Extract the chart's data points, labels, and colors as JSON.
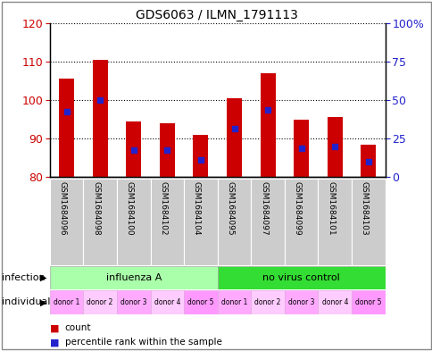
{
  "title": "GDS6063 / ILMN_1791113",
  "samples": [
    "GSM1684096",
    "GSM1684098",
    "GSM1684100",
    "GSM1684102",
    "GSM1684104",
    "GSM1684095",
    "GSM1684097",
    "GSM1684099",
    "GSM1684101",
    "GSM1684103"
  ],
  "counts": [
    105.5,
    110.5,
    94.5,
    94.0,
    91.0,
    100.5,
    107.0,
    95.0,
    95.5,
    88.5
  ],
  "percentile_left_axis": [
    97.0,
    100.0,
    87.0,
    87.0,
    84.5,
    92.5,
    97.5,
    87.5,
    88.0,
    84.0
  ],
  "ylim_left": [
    80,
    120
  ],
  "ylim_right": [
    0,
    100
  ],
  "yticks_left": [
    80,
    90,
    100,
    110,
    120
  ],
  "yticks_right": [
    0,
    25,
    50,
    75,
    100
  ],
  "ytick_labels_right": [
    "0",
    "25",
    "50",
    "75",
    "100%"
  ],
  "bar_color": "#cc0000",
  "percentile_color": "#2222cc",
  "bar_bottom": 80,
  "infection_groups": [
    {
      "label": "influenza A",
      "start": 0,
      "end": 5,
      "color": "#aaffaa"
    },
    {
      "label": "no virus control",
      "start": 5,
      "end": 10,
      "color": "#33dd33"
    }
  ],
  "individuals": [
    "donor 1",
    "donor 2",
    "donor 3",
    "donor 4",
    "donor 5",
    "donor 1",
    "donor 2",
    "donor 3",
    "donor 4",
    "donor 5"
  ],
  "ind_colors": [
    "#ffaaff",
    "#ffccff",
    "#ffaaff",
    "#ffccff",
    "#ff99ff",
    "#ffaaff",
    "#ffccff",
    "#ffaaff",
    "#ffccff",
    "#ff99ff"
  ],
  "infection_label": "infection",
  "individual_label": "individual",
  "legend_count_label": "count",
  "legend_percentile_label": "percentile rank within the sample",
  "bg_color": "#ffffff",
  "axis_color_left": "#cc0000",
  "axis_color_right": "#2222cc",
  "grid_color": "#000000",
  "sample_bg_color": "#cccccc",
  "border_color": "#888888"
}
